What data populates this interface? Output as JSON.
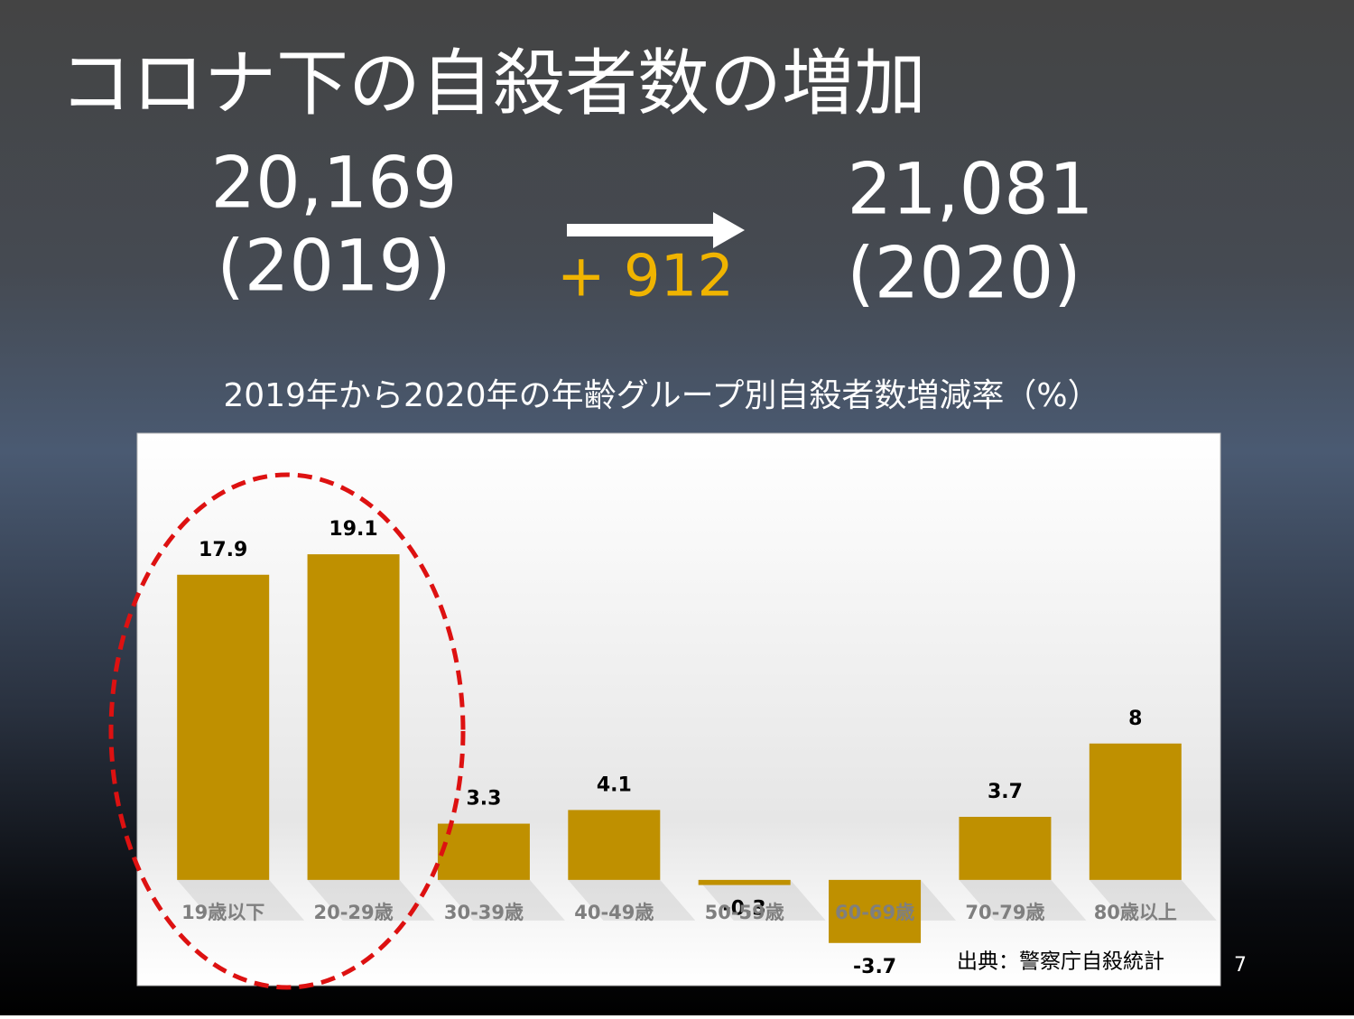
{
  "slide": {
    "title": "コロナ下の自殺者数の増加",
    "before_value": "20,169",
    "before_year": "(2019)",
    "change": "+ 912",
    "after_value": "21,081",
    "after_year": "(2020)",
    "source": "出典：警察庁自殺統計",
    "page_number": "7"
  },
  "chart_data": {
    "type": "bar",
    "title": "2019年から2020年の年齢グループ別自殺者数増減率（%）",
    "categories": [
      "19歳以下",
      "20-29歳",
      "30-39歳",
      "40-49歳",
      "50-59歳",
      "60-69歳",
      "70-79歳",
      "80歳以上"
    ],
    "values": [
      17.9,
      19.1,
      3.3,
      4.1,
      -0.3,
      -3.7,
      3.7,
      8
    ],
    "color": "#bf9000",
    "ylim": [
      -6.2,
      26.2
    ]
  }
}
